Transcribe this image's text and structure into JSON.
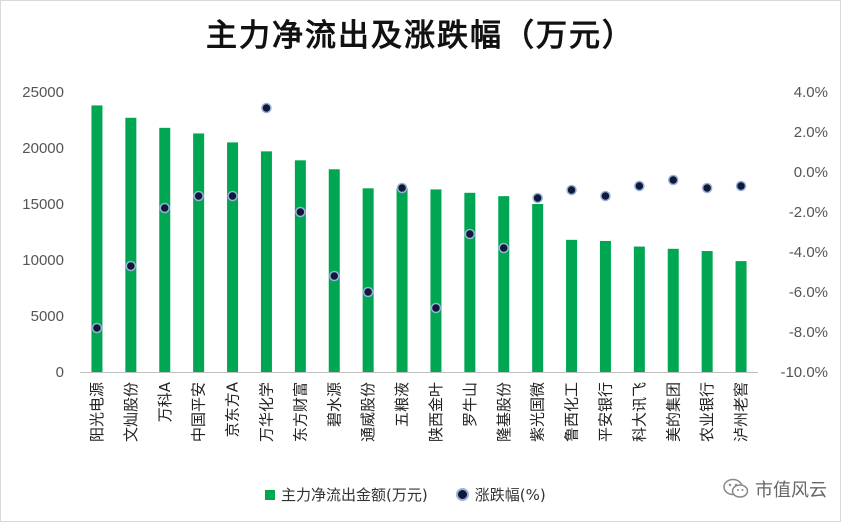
{
  "chart_data": {
    "type": "bar",
    "title": "主力净流出及涨跌幅（万元）",
    "categories": [
      "阳光电源",
      "文灿股份",
      "万科A",
      "中国平安",
      "京东方A",
      "万华化学",
      "东方财富",
      "碧水源",
      "通威股份",
      "五粮液",
      "陕西金叶",
      "罗牛山",
      "隆基股份",
      "紫光国微",
      "鲁西化工",
      "平安银行",
      "科大讯飞",
      "美的集团",
      "农业银行",
      "泸州老窖"
    ],
    "series": [
      {
        "name": "主力净流出金额(万元)",
        "kind": "bar",
        "axis": "left",
        "values": [
          23800,
          22700,
          21800,
          21300,
          20500,
          19700,
          18900,
          18100,
          16400,
          16400,
          16300,
          16000,
          15700,
          15000,
          11800,
          11700,
          11200,
          11000,
          10800,
          9900
        ]
      },
      {
        "name": "涨跌幅(%)",
        "kind": "scatter",
        "axis": "right",
        "values": [
          -7.8,
          -4.7,
          -1.8,
          -1.2,
          -1.2,
          3.2,
          -2.0,
          -5.2,
          -6.0,
          -0.8,
          -6.8,
          -3.1,
          -3.8,
          -1.3,
          -0.9,
          -1.2,
          -0.7,
          -0.4,
          -0.8,
          -0.7
        ]
      }
    ],
    "ylim_left": [
      0,
      25000
    ],
    "yticks_left": [
      "0",
      "5000",
      "10000",
      "15000",
      "20000",
      "25000"
    ],
    "ylim_right": [
      -10,
      4
    ],
    "yticks_right": [
      "-10.0%",
      "-8.0%",
      "-6.0%",
      "-4.0%",
      "-2.0%",
      "0.0%",
      "2.0%",
      "4.0%"
    ],
    "legend": [
      "主力净流出金额(万元)",
      "涨跌幅(%)"
    ],
    "legend_position": "bottom",
    "grid": false,
    "colors": {
      "bar": "#00a651",
      "dot": "#0d1a3a",
      "dot_edge": "#9bb0d8"
    }
  },
  "watermark": "市值风云"
}
